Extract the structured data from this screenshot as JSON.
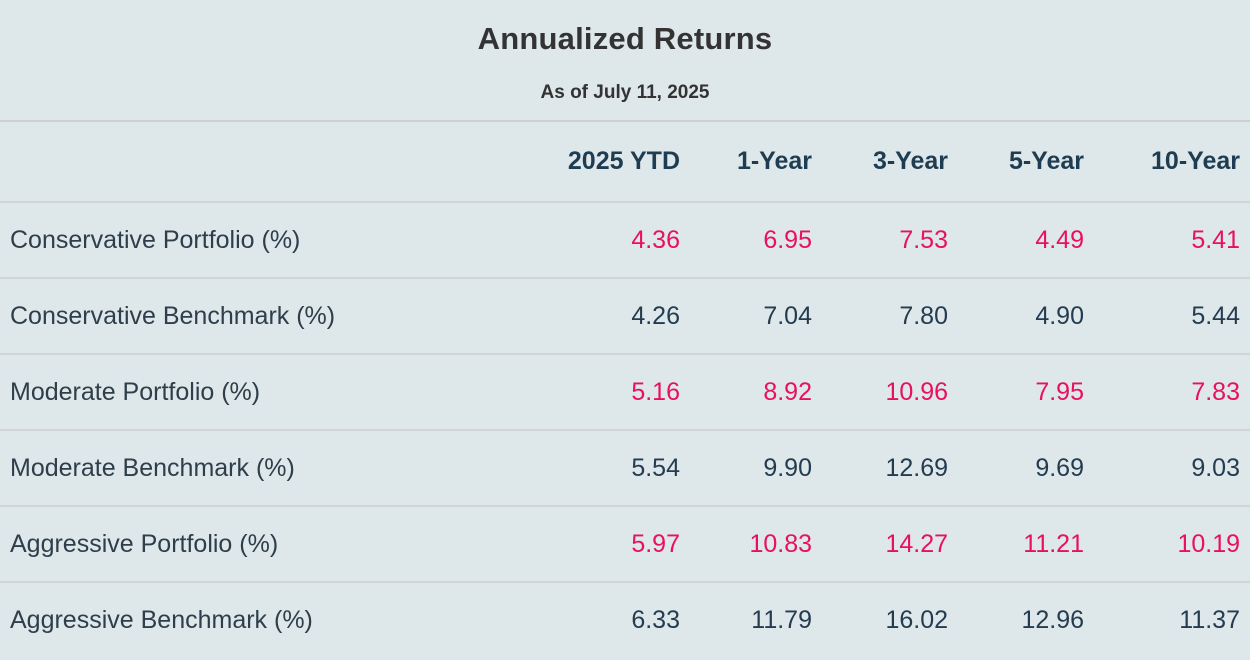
{
  "header": {
    "title": "Annualized Returns",
    "subtitle": "As of July 11, 2025"
  },
  "table": {
    "columns": [
      "2025 YTD",
      "1-Year",
      "3-Year",
      "5-Year",
      "10-Year"
    ],
    "rows": [
      {
        "label": "Conservative Portfolio (%)",
        "type": "portfolio",
        "values": [
          "4.36",
          "6.95",
          "7.53",
          "4.49",
          "5.41"
        ]
      },
      {
        "label": "Conservative Benchmark (%)",
        "type": "benchmark",
        "values": [
          "4.26",
          "7.04",
          "7.80",
          "4.90",
          "5.44"
        ]
      },
      {
        "label": "Moderate Portfolio (%)",
        "type": "portfolio",
        "values": [
          "5.16",
          "8.92",
          "10.96",
          "7.95",
          "7.83"
        ]
      },
      {
        "label": "Moderate Benchmark (%)",
        "type": "benchmark",
        "values": [
          "5.54",
          "9.90",
          "12.69",
          "9.69",
          "9.03"
        ]
      },
      {
        "label": "Aggressive Portfolio (%)",
        "type": "portfolio",
        "values": [
          "5.97",
          "10.83",
          "14.27",
          "11.21",
          "10.19"
        ]
      },
      {
        "label": "Aggressive Benchmark (%)",
        "type": "benchmark",
        "values": [
          "6.33",
          "11.79",
          "16.02",
          "12.96",
          "11.37"
        ]
      }
    ]
  },
  "colors": {
    "background": "#dee7e9",
    "title_text": "#333333",
    "column_header_text": "#1e3d52",
    "row_label_text": "#2e3e4a",
    "portfolio_value": "#e8105f",
    "benchmark_value": "#243c50",
    "divider": "#d1d5d6"
  },
  "chart_data": {
    "type": "table",
    "title": "Annualized Returns",
    "subtitle": "As of July 11, 2025",
    "categories": [
      "2025 YTD",
      "1-Year",
      "3-Year",
      "5-Year",
      "10-Year"
    ],
    "series": [
      {
        "name": "Conservative Portfolio (%)",
        "values": [
          4.36,
          6.95,
          7.53,
          4.49,
          5.41
        ]
      },
      {
        "name": "Conservative Benchmark (%)",
        "values": [
          4.26,
          7.04,
          7.8,
          4.9,
          5.44
        ]
      },
      {
        "name": "Moderate Portfolio (%)",
        "values": [
          5.16,
          8.92,
          10.96,
          7.95,
          7.83
        ]
      },
      {
        "name": "Moderate Benchmark (%)",
        "values": [
          5.54,
          9.9,
          12.69,
          9.69,
          9.03
        ]
      },
      {
        "name": "Aggressive Portfolio (%)",
        "values": [
          5.97,
          10.83,
          14.27,
          11.21,
          10.19
        ]
      },
      {
        "name": "Aggressive Benchmark (%)",
        "values": [
          6.33,
          11.79,
          16.02,
          12.96,
          11.37
        ]
      }
    ],
    "notes": "Portfolio rows rendered in pink #e8105f; Benchmark rows in dark slate #243c50"
  }
}
